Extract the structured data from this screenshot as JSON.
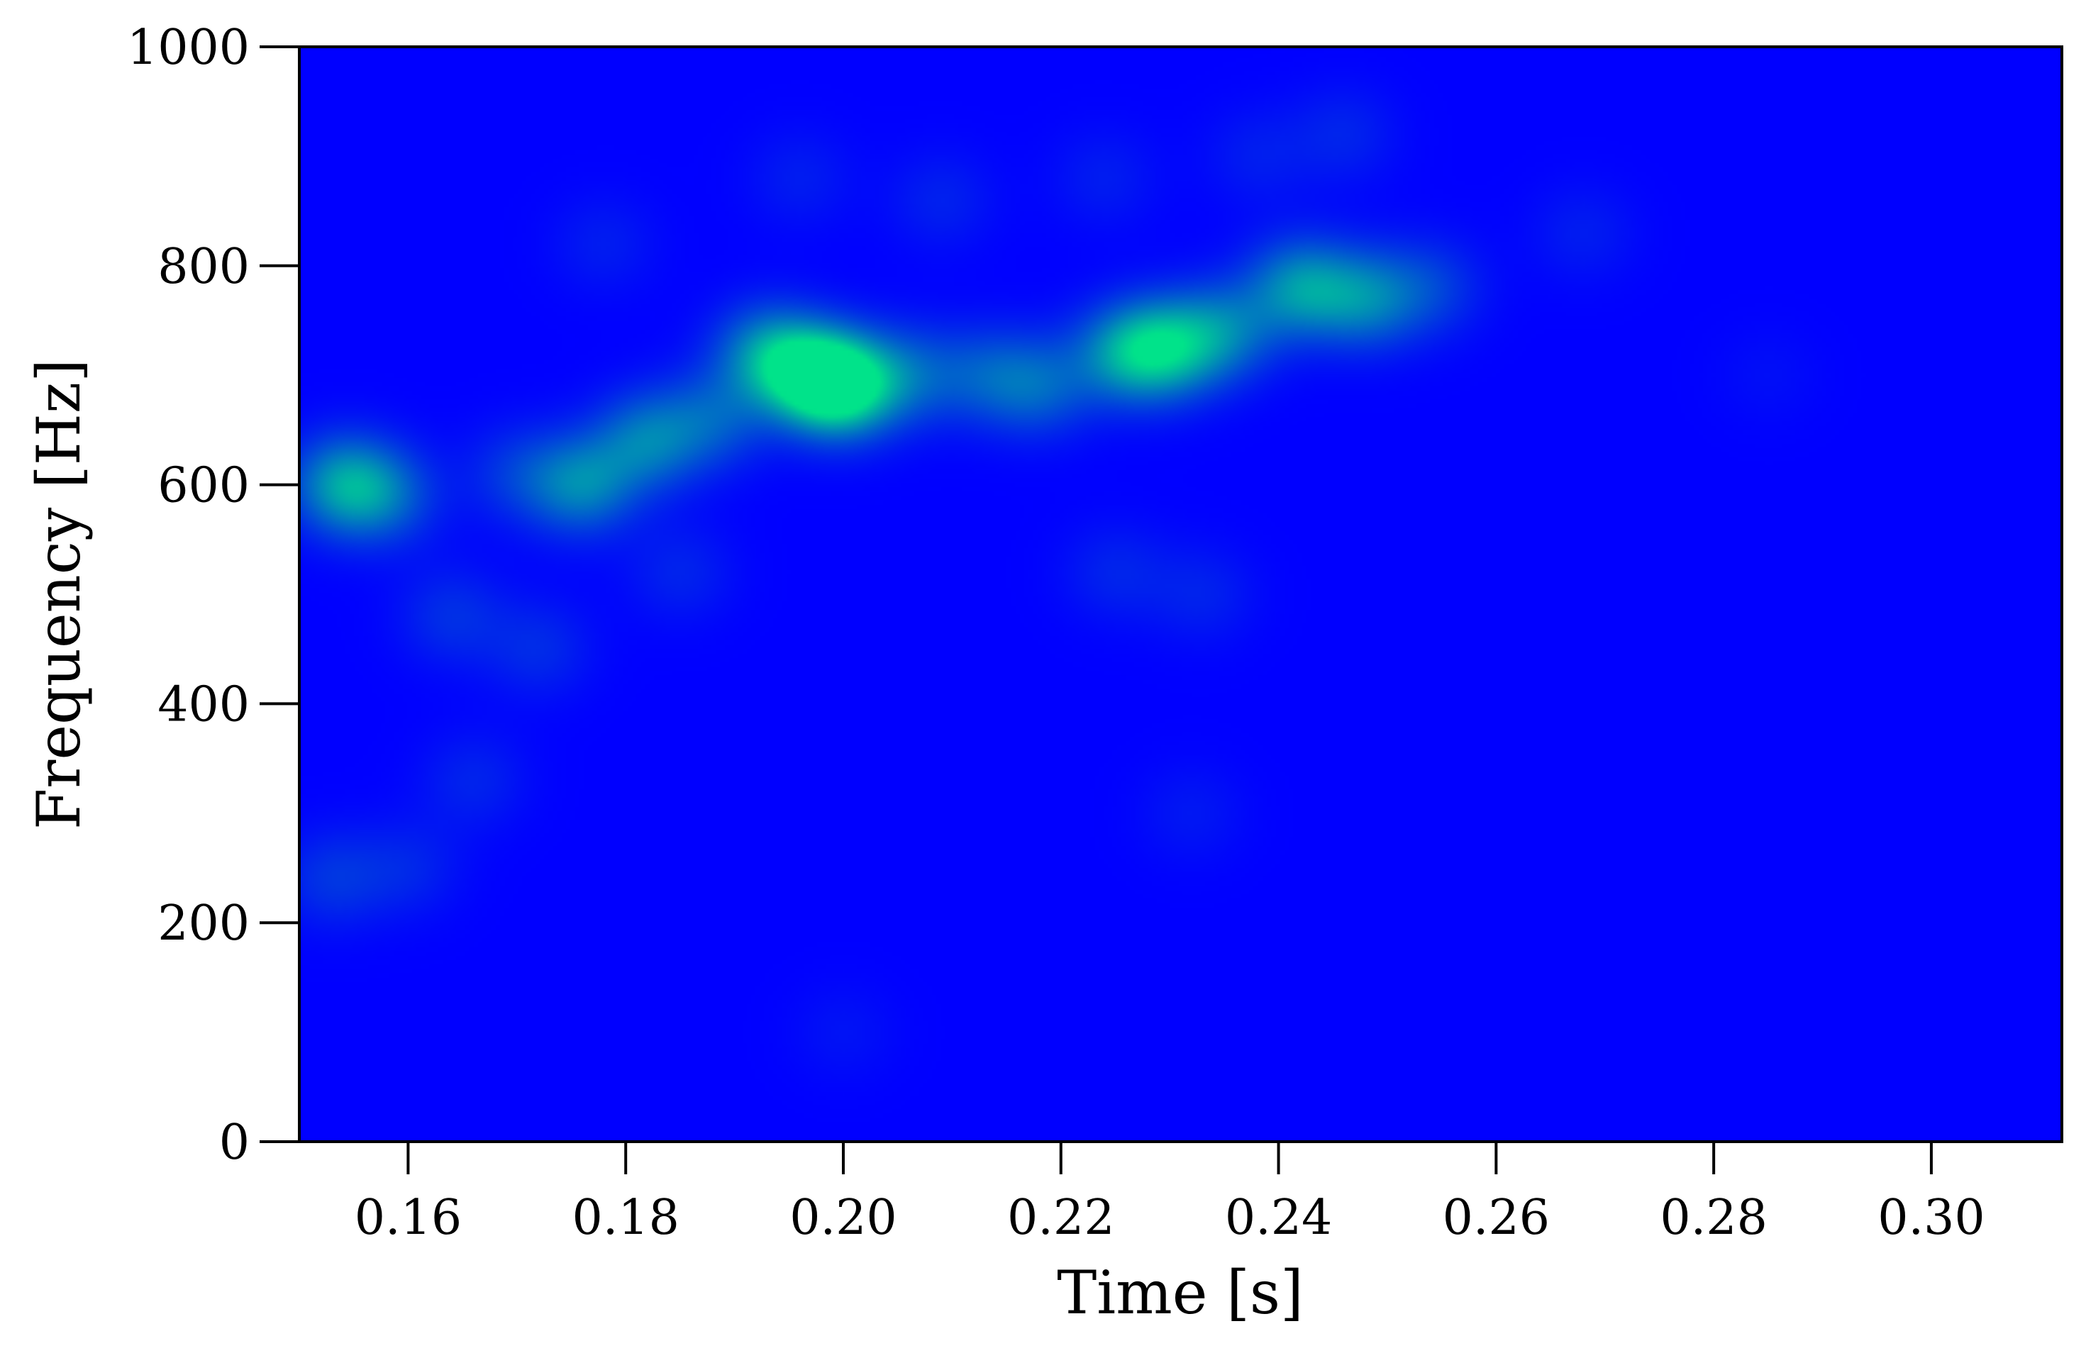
{
  "chart_data": {
    "type": "heatmap",
    "title": "",
    "xlabel": "Time [s]",
    "ylabel": "Frequency [Hz]",
    "xlim": [
      0.15,
      0.312
    ],
    "ylim": [
      0,
      1000
    ],
    "grid": false,
    "x_ticks": [
      0.16,
      0.18,
      0.2,
      0.22,
      0.24,
      0.26,
      0.28,
      0.3
    ],
    "x_tick_labels": [
      "0.16",
      "0.18",
      "0.20",
      "0.22",
      "0.24",
      "0.26",
      "0.28",
      "0.30"
    ],
    "y_ticks": [
      0,
      200,
      400,
      600,
      800,
      1000
    ],
    "y_tick_labels": [
      "0",
      "200",
      "400",
      "600",
      "800",
      "1000"
    ],
    "colors": {
      "low": "#0000ff",
      "high": "#00e38a"
    },
    "blobs": [
      {
        "t": 0.154,
        "f": 600,
        "intensity": 0.62
      },
      {
        "t": 0.158,
        "f": 590,
        "intensity": 0.35
      },
      {
        "t": 0.17,
        "f": 610,
        "intensity": 0.22
      },
      {
        "t": 0.176,
        "f": 600,
        "intensity": 0.55
      },
      {
        "t": 0.182,
        "f": 640,
        "intensity": 0.5
      },
      {
        "t": 0.188,
        "f": 660,
        "intensity": 0.35
      },
      {
        "t": 0.193,
        "f": 720,
        "intensity": 0.55
      },
      {
        "t": 0.197,
        "f": 700,
        "intensity": 0.7
      },
      {
        "t": 0.2,
        "f": 690,
        "intensity": 0.92
      },
      {
        "t": 0.206,
        "f": 700,
        "intensity": 0.35
      },
      {
        "t": 0.213,
        "f": 700,
        "intensity": 0.3
      },
      {
        "t": 0.218,
        "f": 690,
        "intensity": 0.38
      },
      {
        "t": 0.226,
        "f": 720,
        "intensity": 0.58
      },
      {
        "t": 0.23,
        "f": 725,
        "intensity": 0.62
      },
      {
        "t": 0.235,
        "f": 740,
        "intensity": 0.45
      },
      {
        "t": 0.242,
        "f": 780,
        "intensity": 0.6
      },
      {
        "t": 0.248,
        "f": 770,
        "intensity": 0.5
      },
      {
        "t": 0.254,
        "f": 780,
        "intensity": 0.25
      },
      {
        "t": 0.164,
        "f": 480,
        "intensity": 0.2
      },
      {
        "t": 0.172,
        "f": 450,
        "intensity": 0.18
      },
      {
        "t": 0.16,
        "f": 250,
        "intensity": 0.15
      },
      {
        "t": 0.153,
        "f": 240,
        "intensity": 0.22
      },
      {
        "t": 0.166,
        "f": 330,
        "intensity": 0.15
      },
      {
        "t": 0.185,
        "f": 520,
        "intensity": 0.15
      },
      {
        "t": 0.196,
        "f": 880,
        "intensity": 0.12
      },
      {
        "t": 0.209,
        "f": 860,
        "intensity": 0.14
      },
      {
        "t": 0.224,
        "f": 880,
        "intensity": 0.12
      },
      {
        "t": 0.238,
        "f": 900,
        "intensity": 0.12
      },
      {
        "t": 0.246,
        "f": 920,
        "intensity": 0.15
      },
      {
        "t": 0.225,
        "f": 520,
        "intensity": 0.15
      },
      {
        "t": 0.233,
        "f": 500,
        "intensity": 0.14
      },
      {
        "t": 0.178,
        "f": 820,
        "intensity": 0.12
      },
      {
        "t": 0.268,
        "f": 830,
        "intensity": 0.12
      },
      {
        "t": 0.285,
        "f": 700,
        "intensity": 0.06
      },
      {
        "t": 0.232,
        "f": 300,
        "intensity": 0.1
      },
      {
        "t": 0.2,
        "f": 100,
        "intensity": 0.08
      }
    ]
  }
}
